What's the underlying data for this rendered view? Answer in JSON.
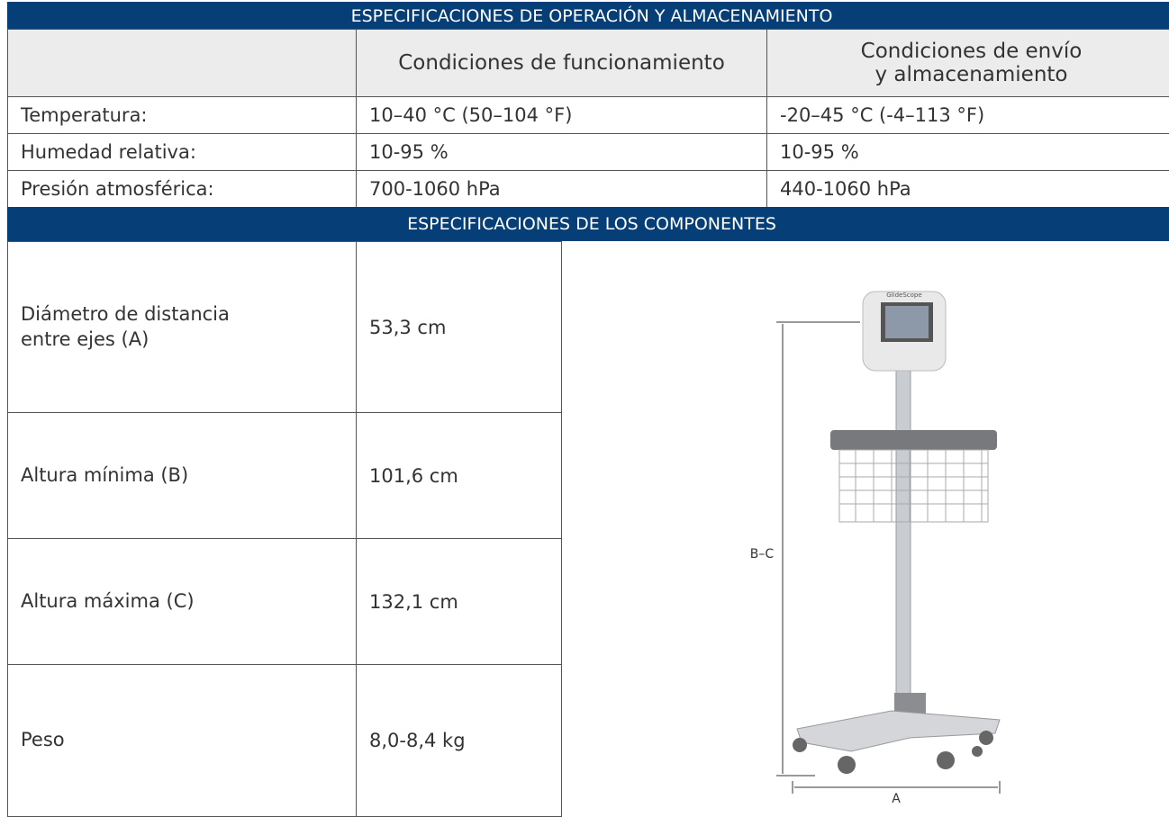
{
  "header": {
    "title": "ESPECIFICACIONES DE OPERACIÓN Y ALMACENAMIENTO"
  },
  "table": {
    "columns": [
      [
        "Condiciones de funcionamiento"
      ],
      [
        "Condiciones de envío",
        "y almacenamiento"
      ]
    ],
    "rows": [
      [
        "Temperatura:",
        "10–40 °C (50–104 °F)",
        "-20–45 °C (-4–113 °F)"
      ],
      [
        "Humedad relativa:",
        "10-95 %",
        "10-95 %"
      ],
      [
        "Presión atmosférica:",
        "700-1060 hPa",
        "440-1060 hPa"
      ]
    ]
  },
  "components": {
    "title": "ESPECIFICACIONES DE LOS COMPONENTES",
    "rows": [
      [
        "Diámetro de distancia entre ejes (A)",
        "53,3 cm"
      ],
      [
        "Altura mínima (B)",
        "101,6 cm"
      ],
      [
        "Altura máxima (C)",
        "132,1 cm"
      ],
      [
        "Peso",
        "8,0-8,4 kg"
      ]
    ]
  },
  "figure": {
    "brand": "GlideScope",
    "height_label": "B–C",
    "width_label": "A"
  }
}
